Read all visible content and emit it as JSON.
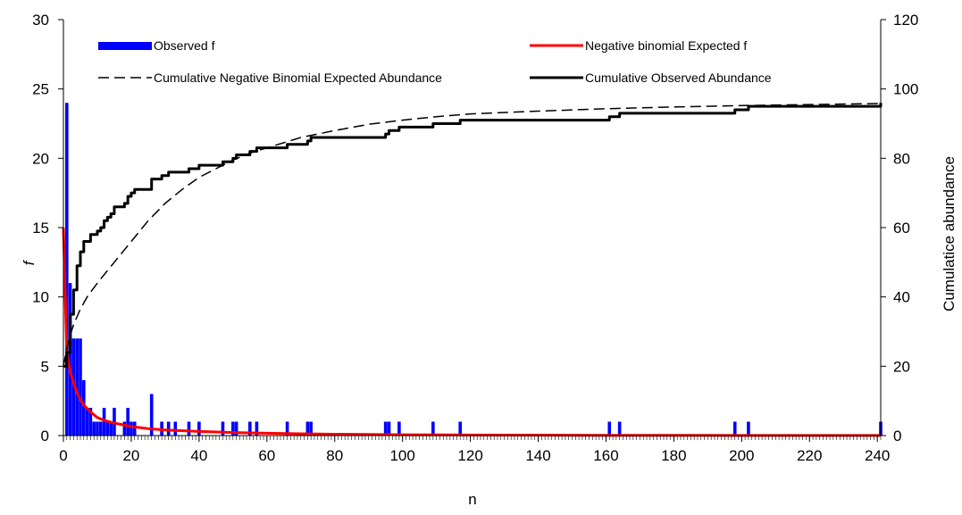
{
  "chart_data": {
    "type": "bar+line",
    "xlabel": "n",
    "ylabel_left": "f",
    "ylabel_right": "Cumulatice abundance",
    "xlim": [
      0,
      241
    ],
    "ylim_left": [
      0,
      30
    ],
    "ylim_right": [
      0,
      120
    ],
    "x_ticks": [
      "0",
      "20",
      "40",
      "60",
      "80",
      "100",
      "120",
      "140",
      "160",
      "180",
      "200",
      "220",
      "240"
    ],
    "y_ticks_left": [
      "0",
      "5",
      "10",
      "15",
      "20",
      "25",
      "30"
    ],
    "y_ticks_right": [
      "0",
      "20",
      "40",
      "60",
      "80",
      "100",
      "120"
    ],
    "legend": {
      "observed_f": "Observed f",
      "nb_expected_f": "Negative binomial Expected f",
      "cum_nb_expected": "Cumulative Negative Binomial Expected Abundance",
      "cum_observed": "Cumulative Observed Abundance"
    },
    "colors": {
      "observed_f": "#0000ff",
      "nb_expected_f": "#ff0000",
      "cum_nb_expected": "#000000",
      "cum_observed": "#000000"
    },
    "series": [
      {
        "name": "Observed f",
        "type": "bar",
        "axis": "left",
        "points": [
          [
            1,
            24
          ],
          [
            2,
            11
          ],
          [
            3,
            7
          ],
          [
            4,
            7
          ],
          [
            5,
            7
          ],
          [
            6,
            4
          ],
          [
            7,
            2
          ],
          [
            8,
            2
          ],
          [
            9,
            1
          ],
          [
            10,
            1
          ],
          [
            11,
            1
          ],
          [
            12,
            2
          ],
          [
            13,
            1
          ],
          [
            14,
            1
          ],
          [
            15,
            2
          ],
          [
            18,
            1
          ],
          [
            19,
            2
          ],
          [
            20,
            1
          ],
          [
            21,
            1
          ],
          [
            26,
            3
          ],
          [
            29,
            1
          ],
          [
            31,
            1
          ],
          [
            33,
            1
          ],
          [
            37,
            1
          ],
          [
            40,
            1
          ],
          [
            47,
            1
          ],
          [
            50,
            1
          ],
          [
            51,
            1
          ],
          [
            55,
            1
          ],
          [
            57,
            1
          ],
          [
            66,
            1
          ],
          [
            72,
            1
          ],
          [
            73,
            1
          ],
          [
            95,
            1
          ],
          [
            96,
            1
          ],
          [
            99,
            1
          ],
          [
            109,
            1
          ],
          [
            117,
            1
          ],
          [
            161,
            1
          ],
          [
            164,
            1
          ],
          [
            198,
            1
          ],
          [
            202,
            1
          ],
          [
            241,
            1
          ]
        ]
      },
      {
        "name": "Negative binomial Expected f",
        "type": "line",
        "axis": "left",
        "points": [
          [
            0,
            15
          ],
          [
            1,
            6
          ],
          [
            2,
            4.6
          ],
          [
            3,
            3.8
          ],
          [
            4,
            3.1
          ],
          [
            5,
            2.6
          ],
          [
            6,
            2.2
          ],
          [
            8,
            1.7
          ],
          [
            10,
            1.3
          ],
          [
            12,
            1.1
          ],
          [
            15,
            0.9
          ],
          [
            20,
            0.65
          ],
          [
            25,
            0.5
          ],
          [
            30,
            0.4
          ],
          [
            40,
            0.3
          ],
          [
            50,
            0.22
          ],
          [
            60,
            0.17
          ],
          [
            70,
            0.13
          ],
          [
            80,
            0.1
          ],
          [
            90,
            0.08
          ],
          [
            100,
            0.06
          ],
          [
            120,
            0.04
          ],
          [
            140,
            0.03
          ],
          [
            160,
            0.02
          ],
          [
            180,
            0.015
          ],
          [
            200,
            0.01
          ],
          [
            241,
            0.005
          ]
        ]
      },
      {
        "name": "Cumulative Negative Binomial Expected Abundance",
        "type": "line",
        "axis": "right",
        "dashed": true,
        "points": [
          [
            0,
            20
          ],
          [
            1,
            25
          ],
          [
            2,
            29
          ],
          [
            3,
            32
          ],
          [
            5,
            36.5
          ],
          [
            7,
            40
          ],
          [
            10,
            44
          ],
          [
            15,
            50
          ],
          [
            20,
            56
          ],
          [
            25,
            62
          ],
          [
            30,
            67
          ],
          [
            35,
            71
          ],
          [
            40,
            74.5
          ],
          [
            45,
            77
          ],
          [
            50,
            79.5
          ],
          [
            55,
            81.5
          ],
          [
            60,
            83
          ],
          [
            70,
            86
          ],
          [
            80,
            88
          ],
          [
            90,
            89.8
          ],
          [
            100,
            91
          ],
          [
            110,
            92
          ],
          [
            120,
            92.8
          ],
          [
            140,
            93.6
          ],
          [
            160,
            94.3
          ],
          [
            180,
            94.8
          ],
          [
            200,
            95.2
          ],
          [
            220,
            95.5
          ],
          [
            241,
            95.8
          ]
        ]
      },
      {
        "name": "Cumulative Observed Abundance",
        "type": "line",
        "axis": "right",
        "points": [
          [
            0,
            20
          ],
          [
            1,
            24
          ],
          [
            2,
            35
          ],
          [
            3,
            42
          ],
          [
            4,
            49
          ],
          [
            5,
            53
          ],
          [
            6,
            56
          ],
          [
            8,
            58
          ],
          [
            10,
            59
          ],
          [
            11,
            60
          ],
          [
            12,
            62
          ],
          [
            13,
            63
          ],
          [
            14,
            64
          ],
          [
            15,
            66
          ],
          [
            18,
            67
          ],
          [
            19,
            69
          ],
          [
            20,
            70
          ],
          [
            21,
            71
          ],
          [
            26,
            74
          ],
          [
            29,
            75
          ],
          [
            31,
            76
          ],
          [
            33,
            76
          ],
          [
            37,
            77
          ],
          [
            40,
            78
          ],
          [
            47,
            79
          ],
          [
            50,
            80
          ],
          [
            51,
            81
          ],
          [
            55,
            82
          ],
          [
            57,
            83
          ],
          [
            66,
            84
          ],
          [
            72,
            85
          ],
          [
            73,
            86
          ],
          [
            95,
            87
          ],
          [
            96,
            88
          ],
          [
            99,
            89
          ],
          [
            109,
            90
          ],
          [
            117,
            91
          ],
          [
            161,
            92
          ],
          [
            164,
            93
          ],
          [
            198,
            94
          ],
          [
            202,
            95
          ],
          [
            241,
            96
          ]
        ]
      }
    ]
  }
}
